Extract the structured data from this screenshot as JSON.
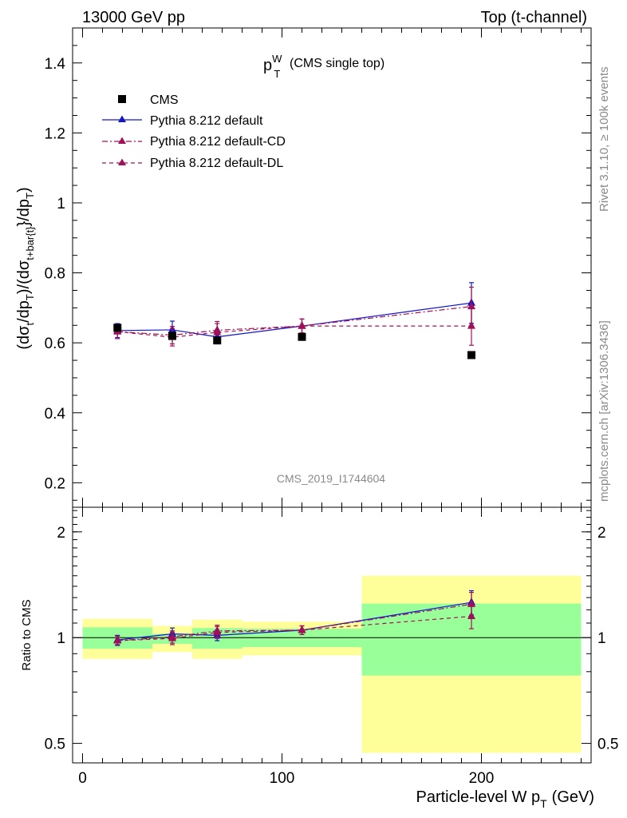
{
  "header": {
    "left": "13000 GeV pp",
    "right": "Top (t-channel)"
  },
  "side": {
    "rivet": "Rivet 3.1.10, ≥ 100k events",
    "mcplots": "mcplots.cern.ch [arXiv:1306.3436]"
  },
  "chart_data": [
    {
      "type": "scatter",
      "title_main": "p",
      "title_sup": "W",
      "title_sub": "T",
      "title_extra": "(CMS single top)",
      "watermark": "CMS_2019_I1744604",
      "ylabel": "(dσt/dpT)/(dσt+bar{t}/dpT)",
      "ylabel_parts": {
        "a": "(dσ",
        "b": "t",
        "c": "/dp",
        "d": "T",
        "e": ")/(dσ",
        "f": "t+bar{t}",
        "g": "}/dp",
        "h": "T",
        "i": ")"
      },
      "xlim": [
        -5,
        255
      ],
      "ylim": [
        0.13,
        1.5
      ],
      "y_ticks": [
        "0.2",
        "0.4",
        "0.6",
        "0.8",
        "1",
        "1.2",
        "1.4"
      ],
      "y_tick_values": [
        0.2,
        0.4,
        0.6,
        0.8,
        1.0,
        1.2,
        1.4
      ],
      "legend": [
        {
          "name": "CMS",
          "style": "square"
        },
        {
          "name": "Pythia 8.212 default",
          "style": "solid"
        },
        {
          "name": "Pythia 8.212 default-CD",
          "style": "dashdot"
        },
        {
          "name": "Pythia 8.212 default-DL",
          "style": "dashed"
        }
      ],
      "data_x": [
        17.5,
        45,
        67.5,
        110,
        195
      ],
      "data_y": [
        0.643,
        0.62,
        0.607,
        0.617,
        0.565
      ],
      "series": [
        {
          "name": "Pythia 8.212 default",
          "color": "#1414c8",
          "dash": "",
          "x": [
            17.5,
            45,
            67.5,
            110,
            195
          ],
          "y": [
            0.635,
            0.637,
            0.617,
            0.648,
            0.714
          ],
          "err": [
            0.02,
            0.025,
            0.02,
            0.02,
            0.058
          ]
        },
        {
          "name": "Pythia 8.212 default-CD",
          "color": "#a0105a",
          "dash": "7,3,2,3",
          "x": [
            17.5,
            45,
            67.5,
            110,
            195
          ],
          "y": [
            0.632,
            0.622,
            0.636,
            0.648,
            0.704
          ],
          "err": [
            0.02,
            0.025,
            0.025,
            0.02,
            0.055
          ]
        },
        {
          "name": "Pythia 8.212 default-DL",
          "color": "#a0105a",
          "dash": "5,4",
          "x": [
            17.5,
            45,
            67.5,
            110,
            195
          ],
          "y": [
            0.632,
            0.616,
            0.63,
            0.648,
            0.648
          ],
          "err": [
            0.02,
            0.025,
            0.025,
            0.02,
            0.055
          ]
        }
      ]
    },
    {
      "type": "scatter",
      "ylabel": "Ratio to CMS",
      "xlabel_main": "Particle-level W p",
      "xlabel_sub": "T",
      "xlabel_unit": "(GeV)",
      "xlim": [
        -5,
        255
      ],
      "ylim": [
        0.44,
        2.35
      ],
      "log_y": true,
      "x_ticks": [
        "0",
        "100",
        "200"
      ],
      "x_tick_values": [
        0,
        100,
        200
      ],
      "y_ticks": [
        "0.5",
        "1",
        "2"
      ],
      "y_tick_values": [
        0.5,
        1,
        2
      ],
      "bins": [
        {
          "x0": 0,
          "x1": 35,
          "green": [
            0.93,
            1.07
          ],
          "yellow": [
            0.87,
            1.13
          ]
        },
        {
          "x0": 35,
          "x1": 55,
          "green": [
            0.96,
            1.025
          ],
          "yellow": [
            0.91,
            1.08
          ]
        },
        {
          "x0": 55,
          "x1": 80,
          "green": [
            0.93,
            1.065
          ],
          "yellow": [
            0.87,
            1.125
          ]
        },
        {
          "x0": 80,
          "x1": 140,
          "green": [
            0.94,
            1.06
          ],
          "yellow": [
            0.89,
            1.11
          ]
        },
        {
          "x0": 140,
          "x1": 250,
          "green": [
            0.78,
            1.25
          ],
          "yellow": [
            0.47,
            1.5
          ]
        }
      ],
      "series": [
        {
          "name": "Pythia 8.212 default",
          "color": "#1414c8",
          "dash": "",
          "x": [
            17.5,
            45,
            67.5,
            110,
            195
          ],
          "y": [
            0.985,
            1.025,
            1.015,
            1.05,
            1.26
          ],
          "err": [
            0.03,
            0.04,
            0.035,
            0.03,
            0.1
          ]
        },
        {
          "name": "Pythia 8.212 default-CD",
          "color": "#a0105a",
          "dash": "7,3,2,3",
          "x": [
            17.5,
            45,
            67.5,
            110,
            195
          ],
          "y": [
            0.98,
            1.005,
            1.045,
            1.05,
            1.245
          ],
          "err": [
            0.03,
            0.04,
            0.04,
            0.03,
            0.1
          ]
        },
        {
          "name": "Pythia 8.212 default-DL",
          "color": "#a0105a",
          "dash": "5,4",
          "x": [
            17.5,
            45,
            67.5,
            110,
            195
          ],
          "y": [
            0.98,
            0.995,
            1.035,
            1.05,
            1.15
          ],
          "err": [
            0.03,
            0.04,
            0.04,
            0.03,
            0.09
          ]
        }
      ]
    }
  ]
}
